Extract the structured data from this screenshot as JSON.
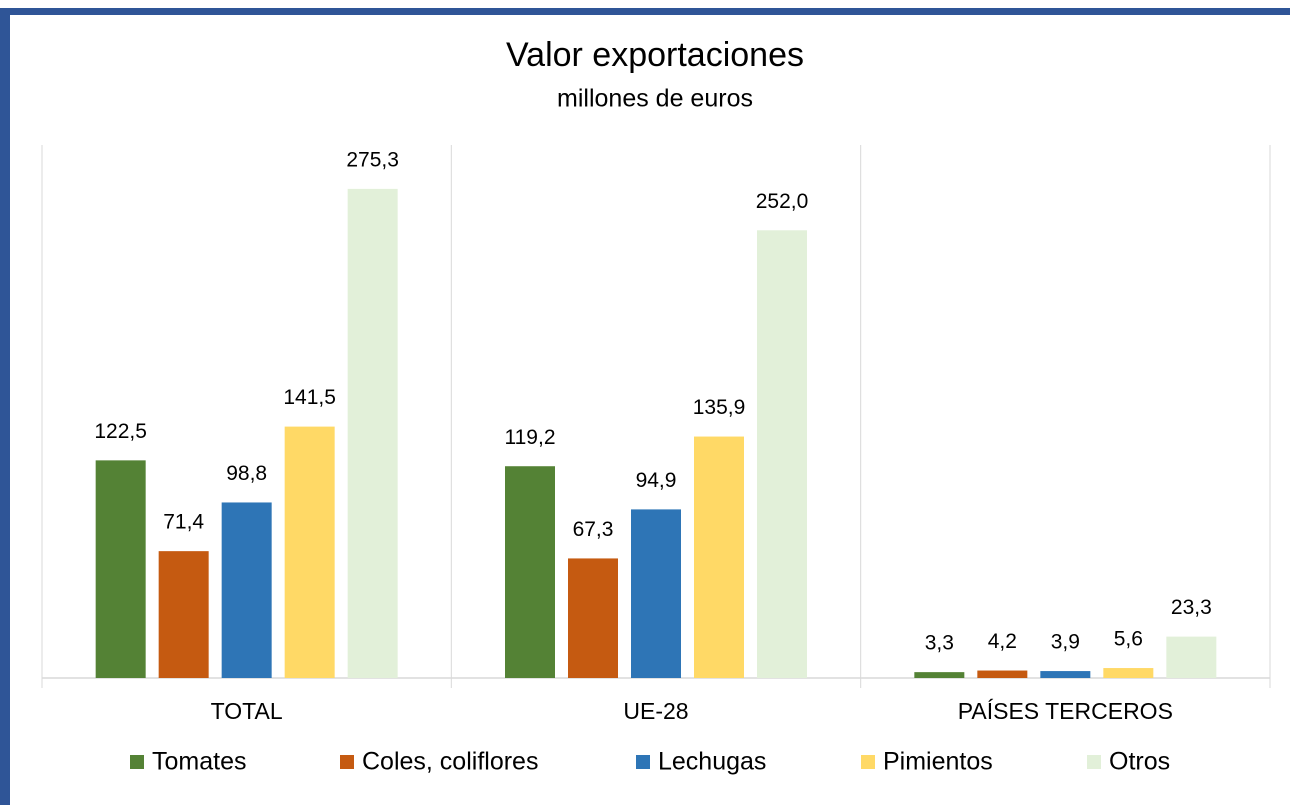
{
  "chart_data": {
    "type": "bar",
    "title": "Valor exportaciones",
    "subtitle": "millones de euros",
    "categories": [
      "TOTAL",
      "UE-28",
      "PAÍSES TERCEROS"
    ],
    "series": [
      {
        "name": "Tomates",
        "color": "#548235",
        "values": [
          122.5,
          119.2,
          3.3
        ],
        "value_labels": [
          "122,5",
          "119,2",
          "3,3"
        ]
      },
      {
        "name": "Coles, coliflores",
        "color": "#c55a11",
        "values": [
          71.4,
          67.3,
          4.2
        ],
        "value_labels": [
          "71,4",
          "67,3",
          "4,2"
        ]
      },
      {
        "name": "Lechugas",
        "color": "#2e75b6",
        "values": [
          98.8,
          94.9,
          3.9
        ],
        "value_labels": [
          "98,8",
          "94,9",
          "3,9"
        ]
      },
      {
        "name": "Pimientos",
        "color": "#ffd966",
        "values": [
          141.5,
          135.9,
          5.6
        ],
        "value_labels": [
          "141,5",
          "135,9",
          "5,6"
        ]
      },
      {
        "name": "Otros",
        "color": "#e2f0d9",
        "values": [
          275.3,
          252.0,
          23.3
        ],
        "value_labels": [
          "275,3",
          "252,0",
          "23,3"
        ]
      }
    ],
    "ylim": [
      0,
      300
    ],
    "legend": "bottom"
  }
}
